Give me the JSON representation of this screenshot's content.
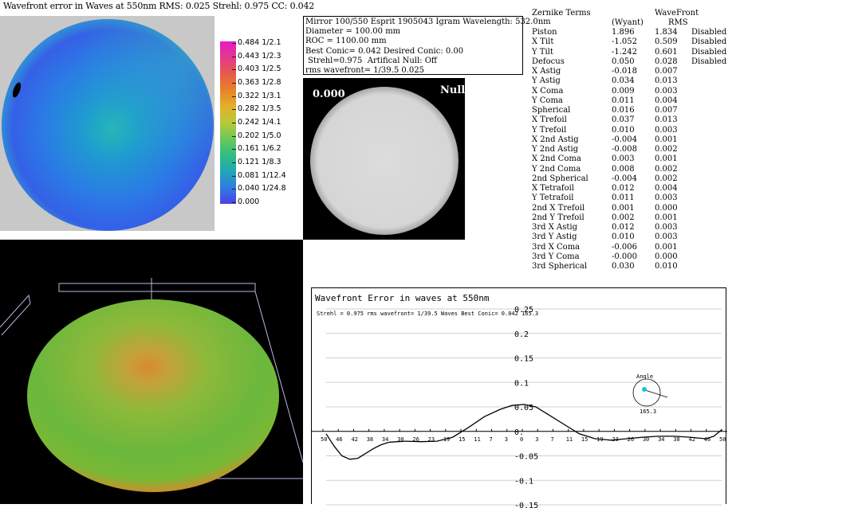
{
  "header": {
    "title": "Wavefront error in Waves at 550nm  RMS: 0.025 Strehl: 0.975 CC: 0.042"
  },
  "legend": {
    "labels": [
      "0.484 1/2.1",
      "0.443 1/2.3",
      "0.403 1/2.5",
      "0.363 1/2.8",
      "0.322 1/3.1",
      "0.282 1/3.5",
      "0.242 1/4.1",
      "0.202 1/5.0",
      "0.161 1/6.2",
      "0.121 1/8.3",
      "0.081 1/12.4",
      "0.040 1/24.8",
      "0.000"
    ]
  },
  "info": {
    "line1": "Mirror 100/550 Esprit 1905043  Igram Wavelength: 532.0nm",
    "line2": "Diameter = 100.00 mm",
    "line3": "ROC = 1100.00 mm",
    "line4": "Best Conic= 0.042 Desired Conic:   0.00",
    "line5": " Strehl=0.975  Artifical Null: Off",
    "line6": "rms wavefront= 1/39.5  0.025"
  },
  "interferogram": {
    "left_label": "0.000",
    "right_label": "Null"
  },
  "zernike": {
    "header_terms": "Zernike Terms",
    "header_wavefront": "WaveFront",
    "header_wyant": "(Wyant)",
    "header_rms": "RMS",
    "rows": [
      {
        "name": "Piston",
        "wyant": "1.896",
        "rms": "1.834",
        "status": "Disabled"
      },
      {
        "name": "X Tilt",
        "wyant": "-1.052",
        "rms": "0.509",
        "status": "Disabled"
      },
      {
        "name": "Y Tilt",
        "wyant": "-1.242",
        "rms": "0.601",
        "status": "Disabled"
      },
      {
        "name": "Defocus",
        "wyant": "0.050",
        "rms": "0.028",
        "status": "Disabled"
      },
      {
        "name": "X Astig",
        "wyant": "-0.018",
        "rms": "0.007",
        "status": ""
      },
      {
        "name": "Y Astig",
        "wyant": "0.034",
        "rms": "0.013",
        "status": ""
      },
      {
        "name": "X Coma",
        "wyant": "0.009",
        "rms": "0.003",
        "status": ""
      },
      {
        "name": "Y Coma",
        "wyant": "0.011",
        "rms": "0.004",
        "status": ""
      },
      {
        "name": "Spherical",
        "wyant": "0.016",
        "rms": "0.007",
        "status": ""
      },
      {
        "name": "X Trefoil",
        "wyant": "0.037",
        "rms": "0.013",
        "status": ""
      },
      {
        "name": "Y Trefoil",
        "wyant": "0.010",
        "rms": "0.003",
        "status": ""
      },
      {
        "name": "X 2nd Astig",
        "wyant": "-0.004",
        "rms": "0.001",
        "status": ""
      },
      {
        "name": "Y 2nd Astig",
        "wyant": "-0.008",
        "rms": "0.002",
        "status": ""
      },
      {
        "name": "X 2nd Coma",
        "wyant": "0.003",
        "rms": "0.001",
        "status": ""
      },
      {
        "name": "Y 2nd Coma",
        "wyant": "0.008",
        "rms": "0.002",
        "status": ""
      },
      {
        "name": "2nd Spherical",
        "wyant": "-0.004",
        "rms": "0.002",
        "status": ""
      },
      {
        "name": "X Tetrafoil",
        "wyant": "0.012",
        "rms": "0.004",
        "status": ""
      },
      {
        "name": "Y Tetrafoil",
        "wyant": "0.011",
        "rms": "0.003",
        "status": ""
      },
      {
        "name": "2nd X Trefoil",
        "wyant": "0.001",
        "rms": "0.000",
        "status": ""
      },
      {
        "name": "2nd Y Trefoil",
        "wyant": "0.002",
        "rms": "0.001",
        "status": ""
      },
      {
        "name": "3rd X Astig",
        "wyant": "0.012",
        "rms": "0.003",
        "status": ""
      },
      {
        "name": "3rd Y Astig",
        "wyant": "0.010",
        "rms": "0.003",
        "status": ""
      },
      {
        "name": "3rd X Coma",
        "wyant": "-0.006",
        "rms": "0.001",
        "status": ""
      },
      {
        "name": "3rd Y Coma",
        "wyant": "-0.000",
        "rms": "0.000",
        "status": ""
      },
      {
        "name": "3rd Spherical",
        "wyant": "0.030",
        "rms": "0.010",
        "status": ""
      }
    ]
  },
  "profile_plot": {
    "title": "Wavefront Error in waves at 550nm",
    "subtitle": "Strehl = 0.975 rms wavefront= 1/39.5 Waves Best Conic= 0.042 165.3",
    "angle_label": "Angle",
    "angle_value": "165.3"
  },
  "chart_data": {
    "type": "line",
    "title": "Wavefront Error in waves at 550nm",
    "y_ticks": [
      "0.25",
      "0.2",
      "0.15",
      "0.1",
      "0.05",
      "0.",
      "-0.05",
      "-0.1",
      "-0.15"
    ],
    "x_tick_labels": [
      "50",
      "46",
      "42",
      "38",
      "34",
      "30",
      "26",
      "23",
      "19",
      "15",
      "11",
      "7",
      "3",
      "0",
      "3",
      "7",
      "11",
      "15",
      "19",
      "23",
      "26",
      "30",
      "34",
      "38",
      "42",
      "46",
      "50"
    ],
    "ylim": [
      -0.15,
      0.25
    ],
    "series": [
      {
        "x": [
          -50,
          -48,
          -46,
          -44,
          -42,
          -40,
          -38,
          -36,
          -34,
          -30,
          -26,
          -22,
          -18,
          -14,
          -10,
          -6,
          -3,
          0,
          3,
          6,
          10,
          14,
          18,
          22,
          26,
          30,
          34,
          38,
          42,
          46,
          48,
          50
        ],
        "y": [
          -0.005,
          -0.03,
          -0.05,
          -0.057,
          -0.055,
          -0.045,
          -0.035,
          -0.027,
          -0.022,
          -0.02,
          -0.021,
          -0.02,
          -0.012,
          0.008,
          0.03,
          0.045,
          0.053,
          0.055,
          0.05,
          0.035,
          0.015,
          -0.005,
          -0.015,
          -0.018,
          -0.015,
          -0.012,
          -0.01,
          -0.01,
          -0.012,
          -0.015,
          -0.01,
          0.003
        ]
      }
    ]
  }
}
